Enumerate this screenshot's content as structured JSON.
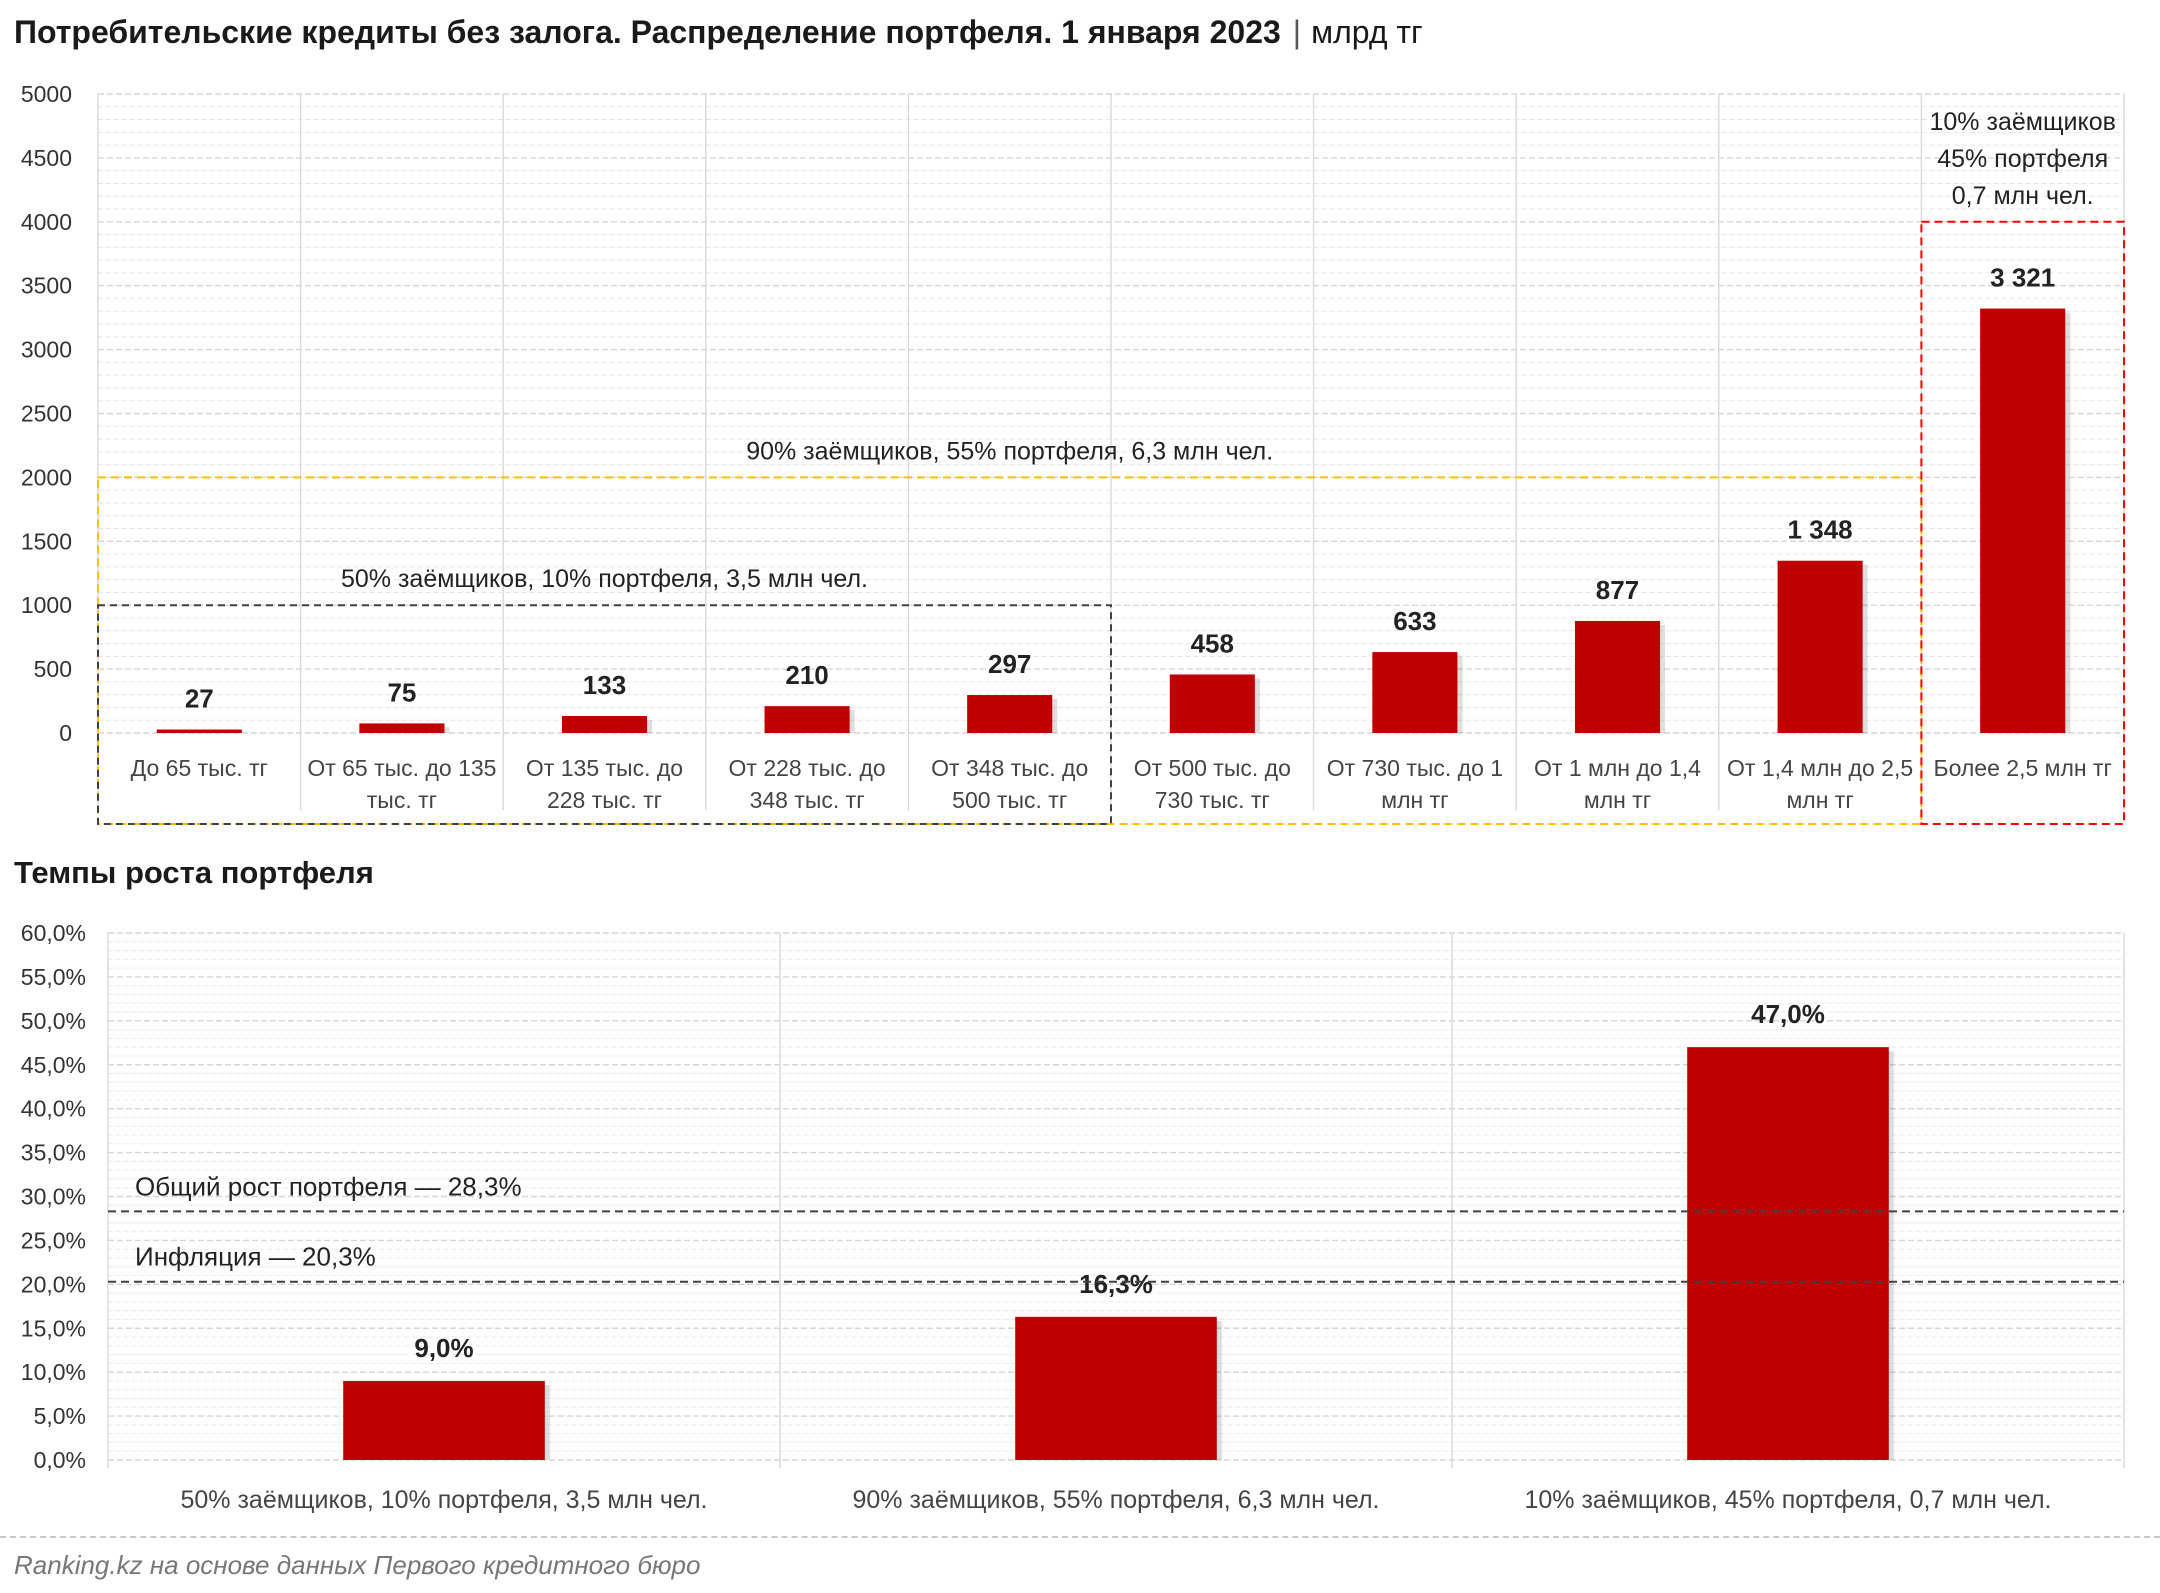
{
  "header": {
    "title": "Потребительские кредиты без залога. Распределение портфеля. 1 января 2023",
    "separator": "|",
    "unit": "млрд тг"
  },
  "chart_data": [
    {
      "type": "bar",
      "title": "Потребительские кредиты без залога. Распределение портфеля. 1 января 2023",
      "unit": "млрд тг",
      "categories": [
        [
          "До 65 тыс. тг"
        ],
        [
          "От 65 тыс. до 135",
          "тыс. тг"
        ],
        [
          "От 135 тыс. до",
          "228 тыс. тг"
        ],
        [
          "От 228 тыс. до",
          "348 тыс. тг"
        ],
        [
          "От 348 тыс. до",
          "500 тыс. тг"
        ],
        [
          "От 500 тыс. до",
          "730 тыс. тг"
        ],
        [
          "От 730 тыс. до 1",
          "млн тг"
        ],
        [
          "От 1 млн до 1,4",
          "млн тг"
        ],
        [
          "От 1,4 млн до 2,5",
          "млн тг"
        ],
        [
          "Более 2,5 млн тг"
        ]
      ],
      "values": [
        27,
        75,
        133,
        210,
        297,
        458,
        633,
        877,
        1348,
        3321
      ],
      "value_labels": [
        "27",
        "75",
        "133",
        "210",
        "297",
        "458",
        "633",
        "877",
        "1 348",
        "3 321"
      ],
      "ylim": [
        0,
        5000
      ],
      "yticks": [
        0,
        500,
        1000,
        1500,
        2000,
        2500,
        3000,
        3500,
        4000,
        4500,
        5000
      ],
      "grid": true,
      "bar_color": "#C00000",
      "groups": [
        {
          "label": "50% заёмщиков, 10% портфеля, 3,5 млн чел.",
          "first": 0,
          "last": 4,
          "box_top": 1000,
          "color": "#404040"
        },
        {
          "label": "90% заёмщиков, 55% портфеля, 6,3 млн чел.",
          "first": 0,
          "last": 8,
          "box_top": 2000,
          "color": "#FFC000"
        },
        {
          "label_lines": [
            "10% заёмщиков",
            "45% портфеля",
            "0,7 млн чел."
          ],
          "first": 9,
          "last": 9,
          "box_top": 4000,
          "color": "#FF0000"
        }
      ]
    },
    {
      "type": "bar",
      "title": "Темпы роста портфеля",
      "categories": [
        "50% заёмщиков, 10% портфеля, 3,5 млн чел.",
        "90% заёмщиков, 55% портфеля, 6,3 млн чел.",
        "10% заёмщиков, 45% портфеля, 0,7 млн чел."
      ],
      "values": [
        9.0,
        16.3,
        47.0
      ],
      "value_labels": [
        "9,0%",
        "16,3%",
        "47,0%"
      ],
      "ylim": [
        0,
        60
      ],
      "yticks": [
        "0,0%",
        "5,0%",
        "10,0%",
        "15,0%",
        "20,0%",
        "25,0%",
        "30,0%",
        "35,0%",
        "40,0%",
        "45,0%",
        "50,0%",
        "55,0%",
        "60,0%"
      ],
      "grid": true,
      "bar_color": "#C00000",
      "reference_lines": [
        {
          "label": "Общий рост портфеля — 28,3%",
          "value": 28.3
        },
        {
          "label": "Инфляция — 20,3%",
          "value": 20.3
        }
      ]
    }
  ],
  "source": "Ranking.kz на основе данных Первого кредитного бюро"
}
